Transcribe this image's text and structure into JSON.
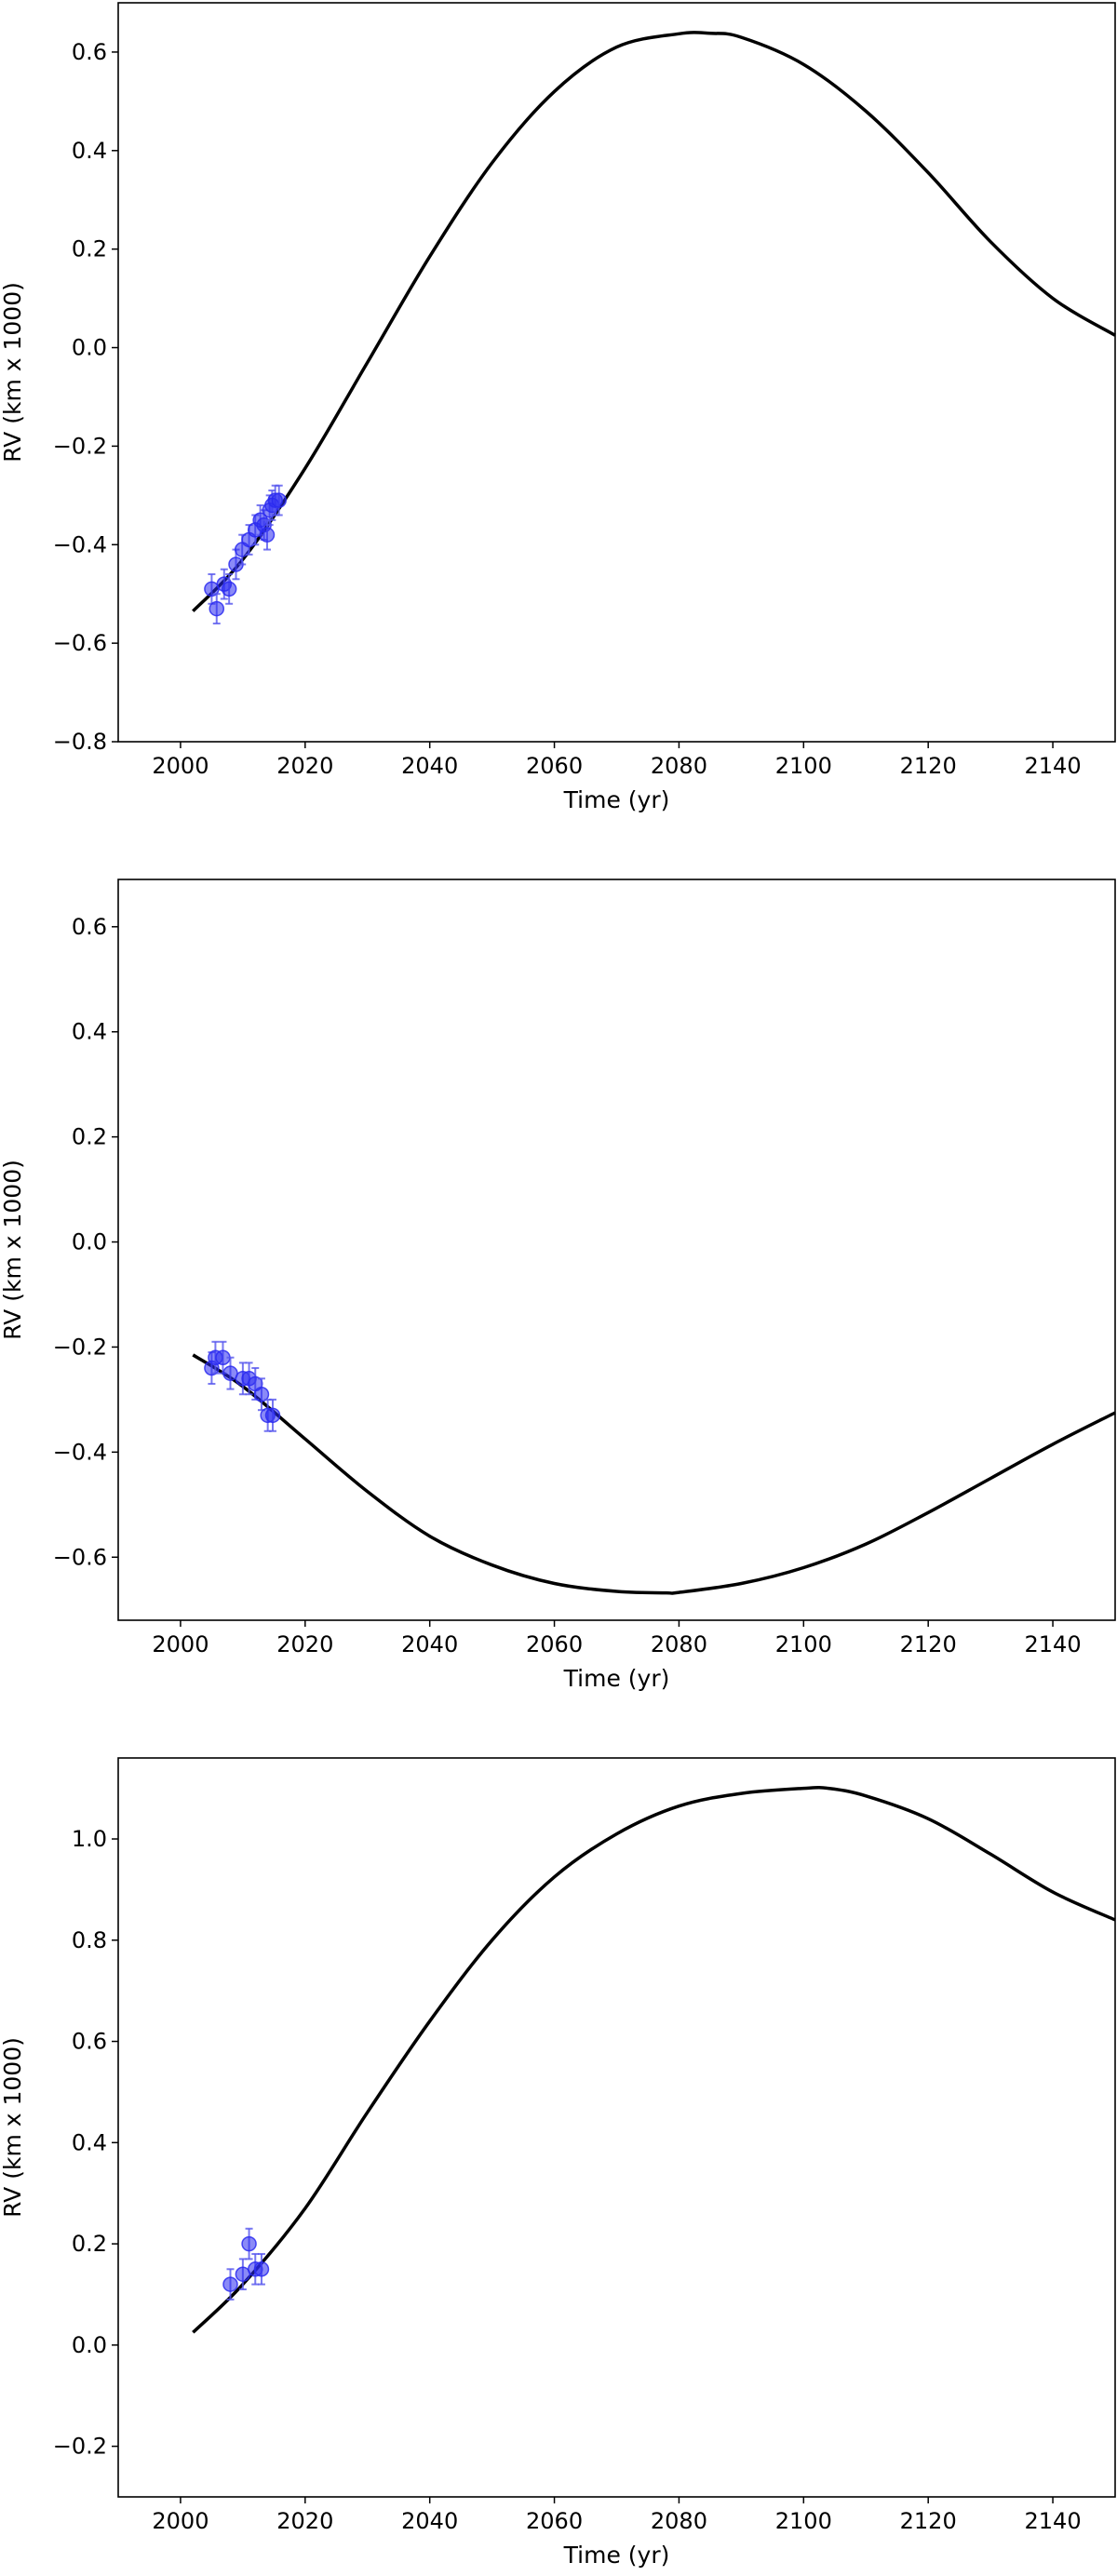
{
  "chart_data": [
    {
      "type": "scatter",
      "xlabel": "Time (yr)",
      "ylabel": "RV (km x 1000)",
      "xlim": [
        1990,
        2150
      ],
      "ylim": [
        -0.8,
        0.7
      ],
      "xticks": [
        2000,
        2020,
        2040,
        2060,
        2080,
        2100,
        2120,
        2140
      ],
      "yticks": [
        -0.8,
        -0.6,
        -0.4,
        -0.2,
        0.0,
        0.2,
        0.4,
        0.6
      ],
      "ytick_labels": [
        "−0.8",
        "−0.6",
        "−0.4",
        "−0.2",
        "0.0",
        "0.2",
        "0.4",
        "0.6"
      ],
      "grid": false,
      "colors": {
        "points": "#2a2af0",
        "errorbars": "#5555ee",
        "model": "#000000"
      },
      "model_curve": [
        [
          2002,
          -0.535
        ],
        [
          2010,
          -0.43
        ],
        [
          2020,
          -0.245
        ],
        [
          2030,
          -0.03
        ],
        [
          2040,
          0.185
        ],
        [
          2050,
          0.375
        ],
        [
          2060,
          0.52
        ],
        [
          2070,
          0.61
        ],
        [
          2080,
          0.637
        ],
        [
          2085,
          0.638
        ],
        [
          2090,
          0.63
        ],
        [
          2100,
          0.575
        ],
        [
          2110,
          0.48
        ],
        [
          2120,
          0.355
        ],
        [
          2130,
          0.215
        ],
        [
          2140,
          0.1
        ],
        [
          2150,
          0.025
        ]
      ],
      "points": [
        {
          "x": 2005.0,
          "y": -0.49,
          "err": 0.03
        },
        {
          "x": 2005.8,
          "y": -0.53,
          "err": 0.03
        },
        {
          "x": 2007.0,
          "y": -0.48,
          "err": 0.03
        },
        {
          "x": 2007.8,
          "y": -0.49,
          "err": 0.03
        },
        {
          "x": 2008.9,
          "y": -0.44,
          "err": 0.03
        },
        {
          "x": 2009.9,
          "y": -0.41,
          "err": 0.03
        },
        {
          "x": 2011.0,
          "y": -0.39,
          "err": 0.03
        },
        {
          "x": 2012.0,
          "y": -0.37,
          "err": 0.03
        },
        {
          "x": 2012.8,
          "y": -0.35,
          "err": 0.03
        },
        {
          "x": 2013.4,
          "y": -0.36,
          "err": 0.03
        },
        {
          "x": 2013.9,
          "y": -0.38,
          "err": 0.03
        },
        {
          "x": 2014.3,
          "y": -0.33,
          "err": 0.03
        },
        {
          "x": 2014.7,
          "y": -0.32,
          "err": 0.03
        },
        {
          "x": 2015.2,
          "y": -0.31,
          "err": 0.03
        },
        {
          "x": 2015.8,
          "y": -0.31,
          "err": 0.03
        }
      ]
    },
    {
      "type": "scatter",
      "xlabel": "Time (yr)",
      "ylabel": "RV (km x 1000)",
      "xlim": [
        1990,
        2150
      ],
      "ylim": [
        -0.72,
        0.69
      ],
      "xticks": [
        2000,
        2020,
        2040,
        2060,
        2080,
        2100,
        2120,
        2140
      ],
      "yticks": [
        -0.6,
        -0.4,
        -0.2,
        0.0,
        0.2,
        0.4,
        0.6
      ],
      "ytick_labels": [
        "−0.6",
        "−0.4",
        "−0.2",
        "0.0",
        "0.2",
        "0.4",
        "0.6"
      ],
      "grid": false,
      "colors": {
        "points": "#2a2af0",
        "errorbars": "#5555ee",
        "model": "#000000"
      },
      "model_curve": [
        [
          2002,
          -0.215
        ],
        [
          2010,
          -0.275
        ],
        [
          2020,
          -0.375
        ],
        [
          2030,
          -0.475
        ],
        [
          2040,
          -0.56
        ],
        [
          2050,
          -0.615
        ],
        [
          2060,
          -0.65
        ],
        [
          2070,
          -0.665
        ],
        [
          2078,
          -0.668
        ],
        [
          2080,
          -0.667
        ],
        [
          2090,
          -0.65
        ],
        [
          2100,
          -0.62
        ],
        [
          2110,
          -0.575
        ],
        [
          2120,
          -0.515
        ],
        [
          2130,
          -0.45
        ],
        [
          2140,
          -0.385
        ],
        [
          2150,
          -0.325
        ]
      ],
      "points": [
        {
          "x": 2005.0,
          "y": -0.24,
          "err": 0.03
        },
        {
          "x": 2005.6,
          "y": -0.22,
          "err": 0.03
        },
        {
          "x": 2006.8,
          "y": -0.22,
          "err": 0.03
        },
        {
          "x": 2008.0,
          "y": -0.25,
          "err": 0.03
        },
        {
          "x": 2010.0,
          "y": -0.26,
          "err": 0.03
        },
        {
          "x": 2011.0,
          "y": -0.26,
          "err": 0.03
        },
        {
          "x": 2012.0,
          "y": -0.27,
          "err": 0.03
        },
        {
          "x": 2013.0,
          "y": -0.29,
          "err": 0.03
        },
        {
          "x": 2014.0,
          "y": -0.33,
          "err": 0.03
        },
        {
          "x": 2014.8,
          "y": -0.33,
          "err": 0.03
        }
      ]
    },
    {
      "type": "scatter",
      "xlabel": "Time (yr)",
      "ylabel": "RV (km x 1000)",
      "xlim": [
        1990,
        2150
      ],
      "ylim": [
        -0.3,
        1.16
      ],
      "xticks": [
        2000,
        2020,
        2040,
        2060,
        2080,
        2100,
        2120,
        2140
      ],
      "yticks": [
        -0.2,
        0.0,
        0.2,
        0.4,
        0.6,
        0.8,
        1.0
      ],
      "ytick_labels": [
        "−0.2",
        "0.0",
        "0.2",
        "0.4",
        "0.6",
        "0.8",
        "1.0"
      ],
      "grid": false,
      "colors": {
        "points": "#2a2af0",
        "errorbars": "#5555ee",
        "model": "#000000"
      },
      "model_curve": [
        [
          2002,
          0.025
        ],
        [
          2010,
          0.12
        ],
        [
          2020,
          0.27
        ],
        [
          2030,
          0.46
        ],
        [
          2040,
          0.64
        ],
        [
          2050,
          0.8
        ],
        [
          2060,
          0.925
        ],
        [
          2070,
          1.01
        ],
        [
          2080,
          1.065
        ],
        [
          2090,
          1.09
        ],
        [
          2100,
          1.1
        ],
        [
          2104,
          1.1
        ],
        [
          2110,
          1.085
        ],
        [
          2120,
          1.04
        ],
        [
          2130,
          0.97
        ],
        [
          2140,
          0.895
        ],
        [
          2150,
          0.84
        ]
      ],
      "points": [
        {
          "x": 2008.0,
          "y": 0.12,
          "err": 0.03
        },
        {
          "x": 2010.0,
          "y": 0.14,
          "err": 0.03
        },
        {
          "x": 2011.0,
          "y": 0.2,
          "err": 0.03
        },
        {
          "x": 2012.0,
          "y": 0.15,
          "err": 0.03
        },
        {
          "x": 2013.0,
          "y": 0.15,
          "err": 0.03
        }
      ]
    }
  ]
}
